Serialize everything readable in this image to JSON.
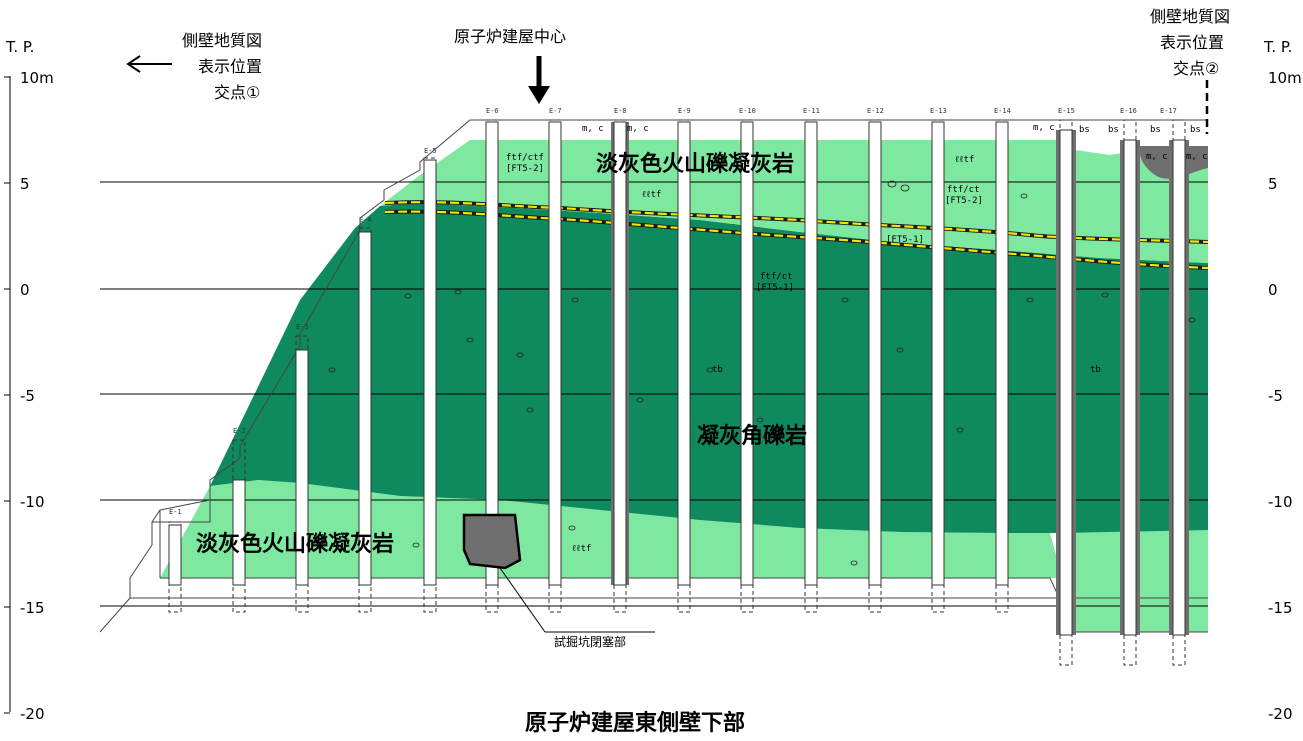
{
  "axis": {
    "label": "T. P.",
    "ticks": [
      "10m",
      "5",
      "0",
      "-5",
      "-10",
      "-15",
      "-20"
    ],
    "tick_values": [
      10,
      5,
      0,
      -5,
      -10,
      -15,
      -20
    ]
  },
  "annotations": {
    "left_marker": [
      "側壁地質図",
      "表示位置",
      "交点①"
    ],
    "right_marker": [
      "側壁地質図",
      "表示位置",
      "交点②"
    ],
    "center_label": "原子炉建屋中心",
    "title": "原子炉建屋東側壁下部",
    "excavation_label": "試掘坑閉塞部"
  },
  "layers": {
    "upper_label": "淡灰色火山礫凝灰岩",
    "middle_label": "凝灰角礫岩",
    "lower_label": "淡灰色火山礫凝灰岩"
  },
  "small_labels": {
    "ftf1": "ftf/ctf",
    "ft52a": "[FT5-2]",
    "lltf_a": "ℓℓtf",
    "lltf_b": "ℓℓtf",
    "lltf_c": "ℓℓtf",
    "ftf2": "ftf/ct",
    "ft52b": "[FT5-2]",
    "ft51a": "[FT5-1]",
    "ftf3": "ftf/ct",
    "ft51b": "[FT5-1]",
    "mc1": "m, c",
    "mc2": "m, c",
    "mc3": "m, c",
    "mc4": "m, c",
    "mc5": "m, c",
    "bs1": "bs",
    "bs2": "bs",
    "bs3": "bs",
    "bs4": "bs",
    "tb1": "tb",
    "tb2": "tb",
    "lltf_d": "ℓℓtf"
  },
  "boreholes": [
    "E-1",
    "E-2",
    "E-3",
    "E-4",
    "E-5",
    "E-6",
    "E-7",
    "E-8",
    "E-9",
    "E-10",
    "E-11",
    "E-12",
    "E-13",
    "E-14",
    "E-15",
    "E-16",
    "E-17"
  ],
  "colors": {
    "light_green": "#7ee8a0",
    "dark_green": "#0f8a5e",
    "dark_gray": "#6f6f6f",
    "yellow": "#f2e600"
  }
}
